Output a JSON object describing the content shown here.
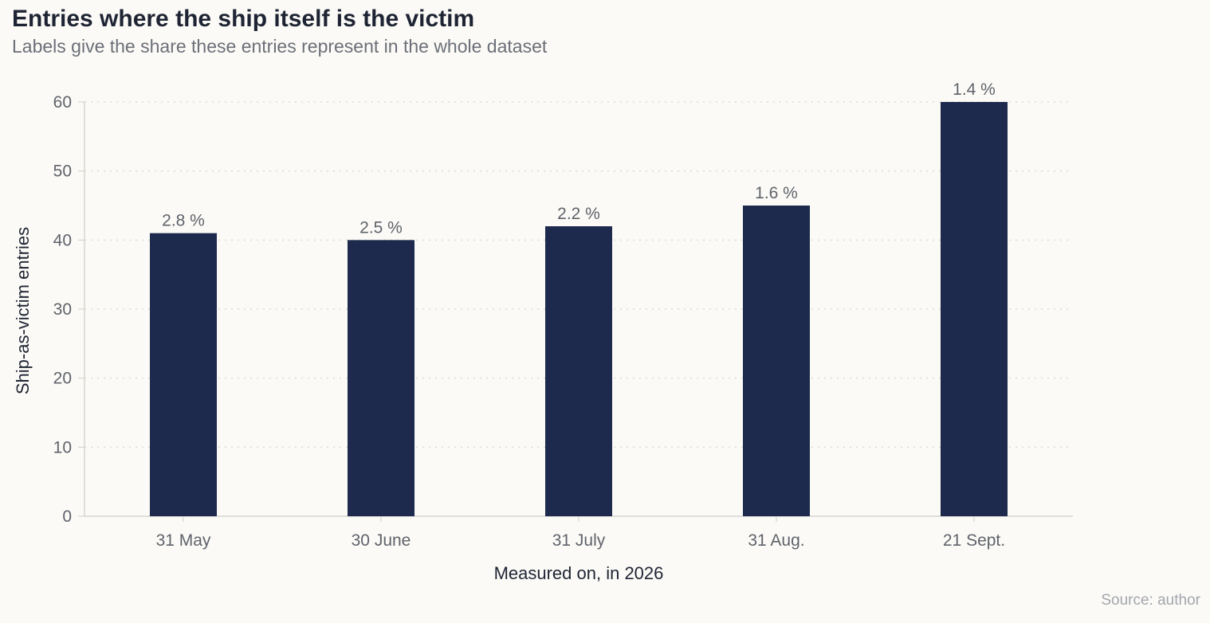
{
  "chart_data": {
    "type": "bar",
    "title": "Entries where the ship itself is the victim",
    "subtitle": "Labels give the share these entries represent in the whole dataset",
    "source": "Source: author",
    "xlabel": "Measured on, in 2026",
    "ylabel": "Ship-as-victim entries",
    "categories": [
      "31 May",
      "30 June",
      "31 July",
      "31 Aug.",
      "21 Sept."
    ],
    "values": [
      41,
      40,
      42,
      45,
      60
    ],
    "bar_labels": [
      "2.8 %",
      "2.5 %",
      "2.2 %",
      "1.6 %",
      "1.4 %"
    ],
    "ylim": [
      0,
      60
    ],
    "yticks": [
      0,
      10,
      20,
      30,
      40,
      50,
      60
    ],
    "grid": true,
    "bar_color": "#1d2a4d"
  }
}
